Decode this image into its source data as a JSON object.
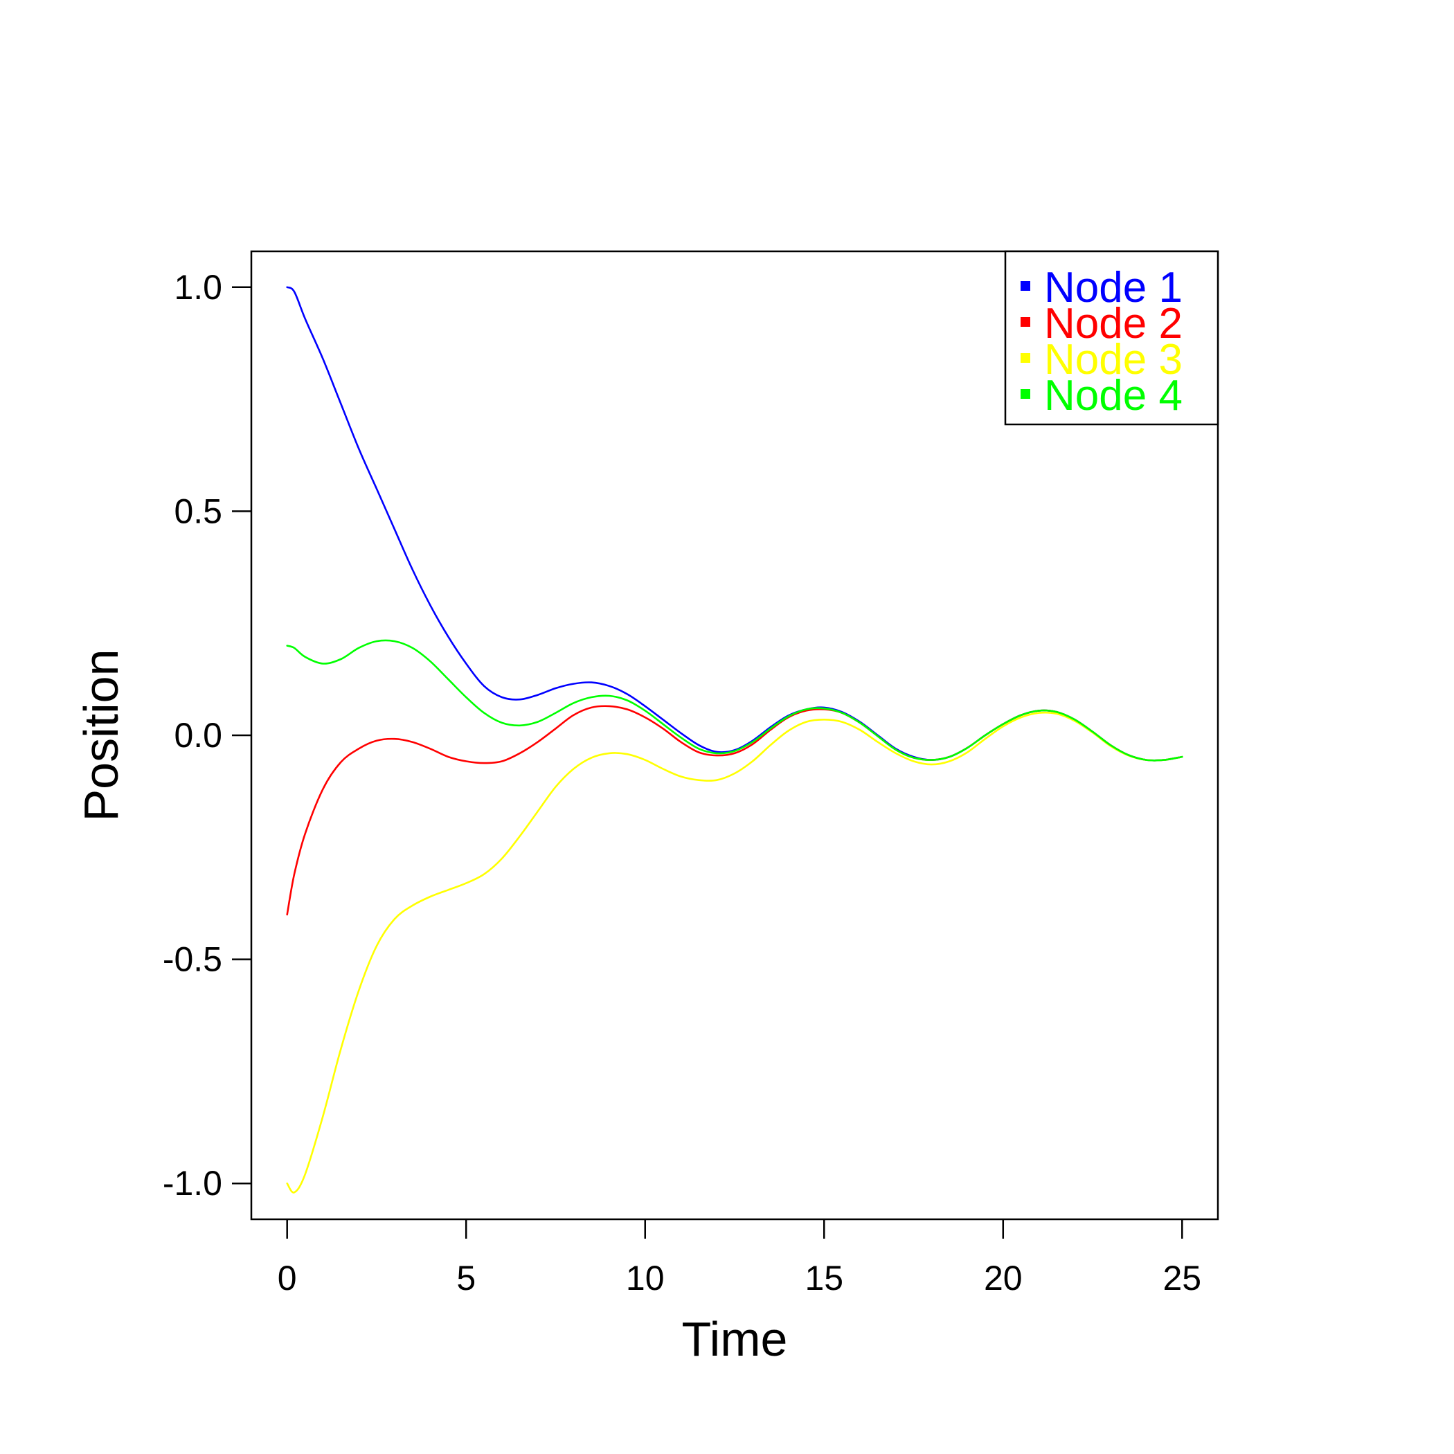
{
  "chart_data": {
    "type": "line",
    "title": "",
    "xlabel": "Time",
    "ylabel": "Position",
    "xlim": [
      -1,
      26
    ],
    "ylim": [
      -1.08,
      1.08
    ],
    "xticks": [
      0,
      5,
      10,
      15,
      20,
      25
    ],
    "xtick_labels": [
      "0",
      "5",
      "10",
      "15",
      "20",
      "25"
    ],
    "yticks": [
      -1.0,
      -0.5,
      0.0,
      0.5,
      1.0
    ],
    "ytick_labels": [
      "-1.0",
      "-0.5",
      "0.0",
      "0.5",
      "1.0"
    ],
    "grid": false,
    "legend_position": "top-right",
    "x": [
      0,
      0.2,
      0.5,
      1,
      1.5,
      2,
      2.5,
      3,
      3.5,
      4,
      4.5,
      5,
      5.5,
      6,
      6.5,
      7,
      7.5,
      8,
      8.5,
      9,
      9.5,
      10,
      10.5,
      11,
      11.5,
      12,
      12.5,
      13,
      13.5,
      14,
      14.5,
      15,
      15.5,
      16,
      16.5,
      17,
      17.5,
      18,
      18.5,
      19,
      19.5,
      20,
      20.5,
      21,
      21.5,
      22,
      22.5,
      23,
      23.5,
      24,
      24.5,
      25
    ],
    "series": [
      {
        "name": "Node 1",
        "color": "#0000FF",
        "values": [
          1.0,
          0.99,
          0.93,
          0.84,
          0.74,
          0.64,
          0.55,
          0.46,
          0.37,
          0.29,
          0.22,
          0.16,
          0.11,
          0.085,
          0.08,
          0.09,
          0.105,
          0.115,
          0.118,
          0.11,
          0.092,
          0.065,
          0.035,
          0.005,
          -0.022,
          -0.037,
          -0.033,
          -0.012,
          0.018,
          0.044,
          0.058,
          0.062,
          0.052,
          0.03,
          0.0,
          -0.03,
          -0.048,
          -0.055,
          -0.048,
          -0.028,
          0.0,
          0.025,
          0.045,
          0.055,
          0.052,
          0.035,
          0.008,
          -0.022,
          -0.044,
          -0.055,
          -0.055,
          -0.048
        ]
      },
      {
        "name": "Node 2",
        "color": "#FF0000",
        "values": [
          -0.4,
          -0.31,
          -0.22,
          -0.12,
          -0.06,
          -0.03,
          -0.012,
          -0.008,
          -0.015,
          -0.03,
          -0.048,
          -0.058,
          -0.062,
          -0.058,
          -0.04,
          -0.015,
          0.015,
          0.045,
          0.062,
          0.065,
          0.058,
          0.04,
          0.015,
          -0.015,
          -0.038,
          -0.045,
          -0.04,
          -0.02,
          0.012,
          0.04,
          0.055,
          0.058,
          0.05,
          0.028,
          -0.002,
          -0.032,
          -0.05,
          -0.055,
          -0.048,
          -0.028,
          0.0,
          0.025,
          0.045,
          0.055,
          0.052,
          0.035,
          0.008,
          -0.022,
          -0.044,
          -0.055,
          -0.055,
          -0.048
        ]
      },
      {
        "name": "Node 3",
        "color": "#FFFF00",
        "values": [
          -1.0,
          -1.02,
          -0.98,
          -0.85,
          -0.7,
          -0.57,
          -0.47,
          -0.41,
          -0.38,
          -0.36,
          -0.345,
          -0.33,
          -0.31,
          -0.275,
          -0.225,
          -0.17,
          -0.115,
          -0.075,
          -0.05,
          -0.04,
          -0.042,
          -0.055,
          -0.075,
          -0.092,
          -0.1,
          -0.1,
          -0.085,
          -0.058,
          -0.022,
          0.01,
          0.03,
          0.035,
          0.03,
          0.012,
          -0.015,
          -0.04,
          -0.058,
          -0.065,
          -0.058,
          -0.038,
          -0.008,
          0.02,
          0.04,
          0.05,
          0.048,
          0.032,
          0.006,
          -0.024,
          -0.045,
          -0.055,
          -0.055,
          -0.048
        ]
      },
      {
        "name": "Node 4",
        "color": "#00FF00",
        "values": [
          0.2,
          0.195,
          0.175,
          0.16,
          0.17,
          0.195,
          0.21,
          0.21,
          0.195,
          0.165,
          0.125,
          0.085,
          0.05,
          0.028,
          0.022,
          0.03,
          0.05,
          0.072,
          0.085,
          0.088,
          0.078,
          0.055,
          0.025,
          -0.005,
          -0.03,
          -0.04,
          -0.035,
          -0.015,
          0.015,
          0.042,
          0.058,
          0.06,
          0.05,
          0.028,
          -0.002,
          -0.032,
          -0.05,
          -0.055,
          -0.048,
          -0.028,
          0.0,
          0.025,
          0.045,
          0.055,
          0.052,
          0.035,
          0.008,
          -0.022,
          -0.044,
          -0.055,
          -0.055,
          -0.048
        ]
      }
    ]
  }
}
